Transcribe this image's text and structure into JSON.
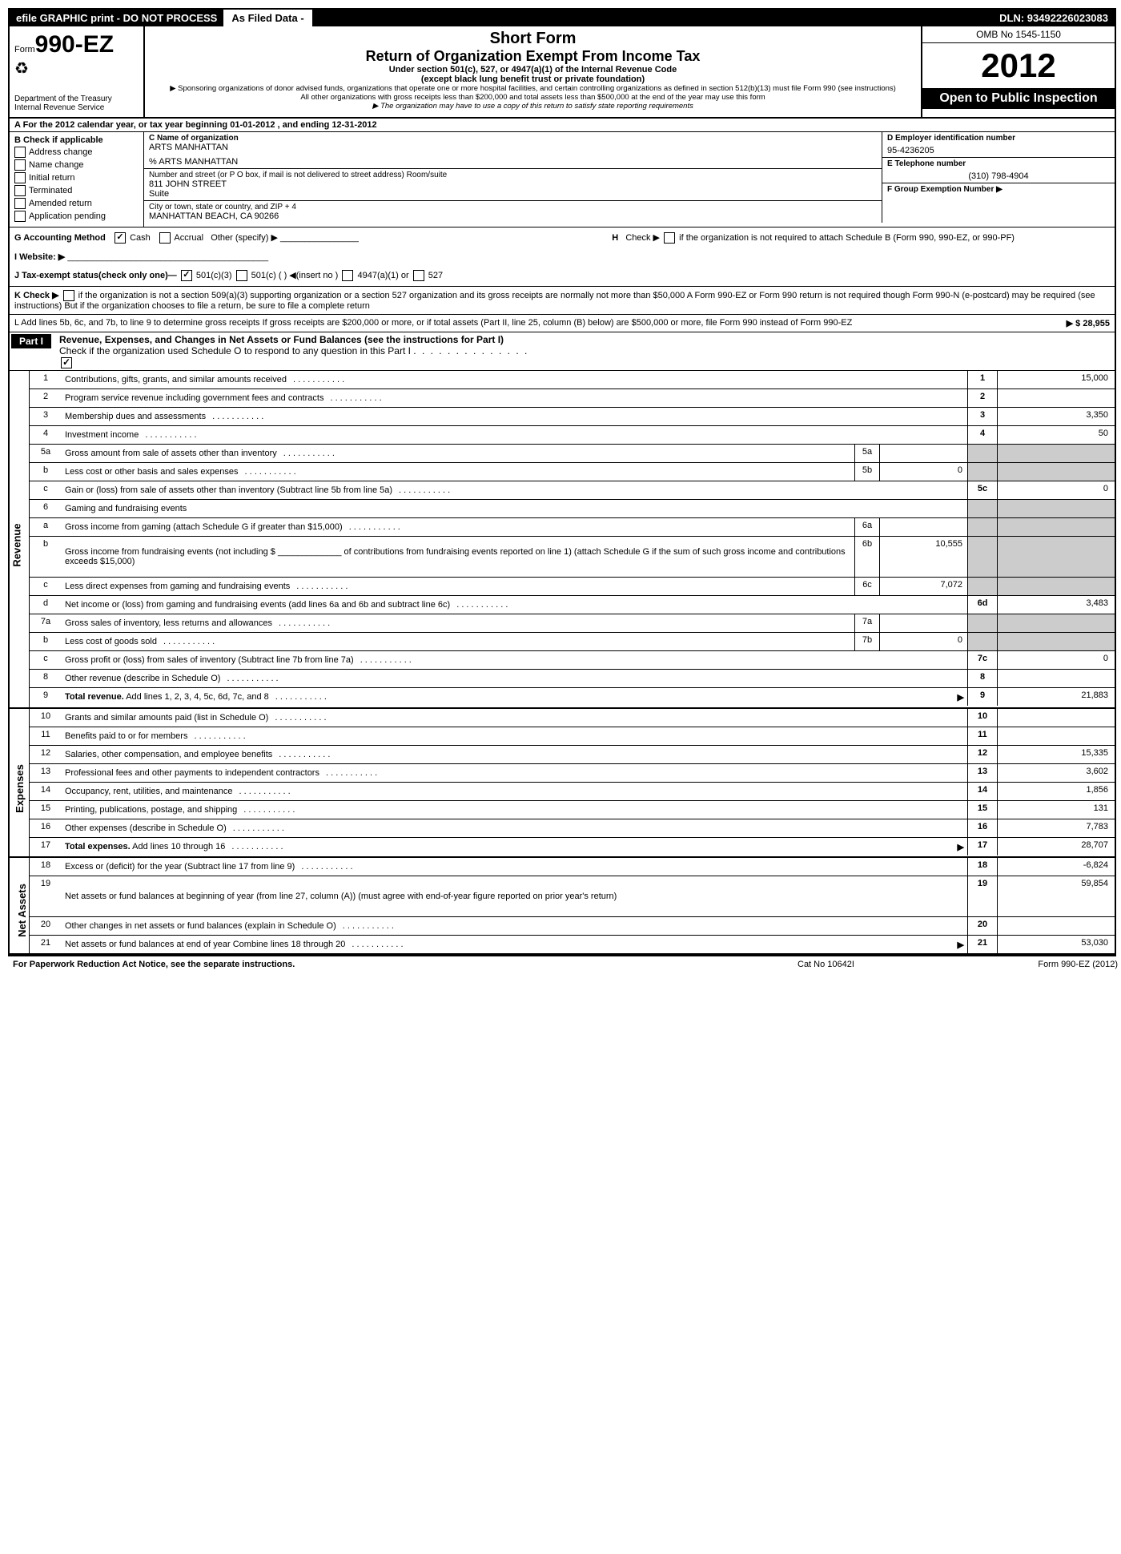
{
  "topbar": {
    "left": "efile GRAPHIC print - DO NOT PROCESS",
    "mid": "As Filed Data -",
    "right": "DLN: 93492226023083"
  },
  "header": {
    "form_prefix": "Form",
    "form_number": "990-EZ",
    "dept1": "Department of the Treasury",
    "dept2": "Internal Revenue Service",
    "short_form": "Short Form",
    "title": "Return of Organization Exempt From Income Tax",
    "sub1": "Under section 501(c), 527, or 4947(a)(1) of the Internal Revenue Code",
    "sub2": "(except black lung benefit trust or private foundation)",
    "note1": "▶ Sponsoring organizations of donor advised funds, organizations that operate one or more hospital facilities, and certain controlling organizations as defined in section 512(b)(13) must file Form 990 (see instructions)",
    "note2": "All other organizations with gross receipts less than $200,000 and total assets less than $500,000 at the end of the year may use this form",
    "note3": "▶ The organization may have to use a copy of this return to satisfy state reporting requirements",
    "omb": "OMB No 1545-1150",
    "year": "2012",
    "open": "Open to Public Inspection"
  },
  "rowA": {
    "text_pre": "A  For the 2012 calendar year, or tax year beginning ",
    "begin": "01-01-2012",
    "text_mid": " , and ending ",
    "end": "12-31-2012"
  },
  "colB": {
    "head": "B  Check if applicable",
    "items": [
      "Address change",
      "Name change",
      "Initial return",
      "Terminated",
      "Amended return",
      "Application pending"
    ]
  },
  "colC": {
    "name_label": "C Name of organization",
    "name": "ARTS MANHATTAN",
    "doing": "% ARTS MANHATTAN",
    "street_label": "Number and street (or P O box, if mail is not delivered to street address) Room/suite",
    "street": "811 JOHN STREET",
    "suite": "Suite",
    "city_label": "City or town, state or country, and ZIP + 4",
    "city": "MANHATTAN BEACH, CA  90266"
  },
  "colD": {
    "d_label": "D Employer identification number",
    "d_val": "95-4236205",
    "e_label": "E Telephone number",
    "e_val": "(310) 798-4904",
    "f_label": "F Group Exemption Number   ▶"
  },
  "rowGH": {
    "g": "G Accounting Method",
    "cash": "Cash",
    "accrual": "Accrual",
    "other": "Other (specify) ▶",
    "i": "I Website: ▶",
    "j": "J Tax-exempt status(check only one)—",
    "j501c3": "501(c)(3)",
    "j501c": "501(c) (   ) ◀(insert no )",
    "j4947": "4947(a)(1) or",
    "j527": "527",
    "h1": "Check ▶",
    "h2": "if the organization is not required to attach Schedule B (Form 990, 990-EZ, or 990-PF)"
  },
  "rowK": {
    "k": "K Check ▶",
    "ktext": "if the organization is not a section 509(a)(3) supporting organization or a section 527 organization and its gross receipts are normally not more than $50,000  A Form 990-EZ or Form 990 return is not required though Form 990-N (e-postcard) may be required (see instructions)  But if the organization chooses to file a return, be sure to file a complete return",
    "l": "L Add lines 5b, 6c, and 7b, to line 9 to determine gross receipts  If gross receipts are $200,000 or more, or if total assets (Part II, line 25, column (B) below) are $500,000 or more, file Form 990 instead of Form 990-EZ",
    "lval": "▶ $ 28,955"
  },
  "part1": {
    "label": "Part I",
    "title": "Revenue, Expenses, and Changes in Net Assets or Fund Balances (see the instructions for Part I)",
    "check": "Check if the organization used Schedule O to respond to any question in this Part I"
  },
  "sections": {
    "revenue": "Revenue",
    "expenses": "Expenses",
    "netassets": "Net Assets"
  },
  "lines": [
    {
      "sec": "revenue",
      "n": "1",
      "desc": "Contributions, gifts, grants, and similar amounts received",
      "ln": "1",
      "val": "15,000"
    },
    {
      "sec": "revenue",
      "n": "2",
      "desc": "Program service revenue including government fees and contracts",
      "ln": "2",
      "val": ""
    },
    {
      "sec": "revenue",
      "n": "3",
      "desc": "Membership dues and assessments",
      "ln": "3",
      "val": "3,350"
    },
    {
      "sec": "revenue",
      "n": "4",
      "desc": "Investment income",
      "ln": "4",
      "val": "50"
    },
    {
      "sec": "revenue",
      "n": "5a",
      "desc": "Gross amount from sale of assets other than inventory",
      "sub": "5a",
      "subval": "",
      "grey": true
    },
    {
      "sec": "revenue",
      "n": "b",
      "desc": "Less  cost or other basis and sales expenses",
      "sub": "5b",
      "subval": "0",
      "grey": true
    },
    {
      "sec": "revenue",
      "n": "c",
      "desc": "Gain or (loss) from sale of assets other than inventory (Subtract line 5b from line 5a)",
      "ln": "5c",
      "val": "0"
    },
    {
      "sec": "revenue",
      "n": "6",
      "desc": "Gaming and fundraising events",
      "grey": true,
      "noval": true
    },
    {
      "sec": "revenue",
      "n": "a",
      "desc": "Gross income from gaming (attach Schedule G if greater than $15,000)",
      "sub": "6a",
      "subval": "",
      "grey": true
    },
    {
      "sec": "revenue",
      "n": "b",
      "desc": "Gross income from fundraising events (not including $ _____________ of contributions from fundraising events reported on line 1) (attach Schedule G if the sum of such gross income and contributions exceeds $15,000)",
      "sub": "6b",
      "subval": "10,555",
      "grey": true,
      "tall": true
    },
    {
      "sec": "revenue",
      "n": "c",
      "desc": "Less  direct expenses from gaming and fundraising events",
      "sub": "6c",
      "subval": "7,072",
      "grey": true
    },
    {
      "sec": "revenue",
      "n": "d",
      "desc": "Net income or (loss) from gaming and fundraising events (add lines 6a and 6b and subtract line 6c)",
      "ln": "6d",
      "val": "3,483"
    },
    {
      "sec": "revenue",
      "n": "7a",
      "desc": "Gross sales of inventory, less returns and allowances",
      "sub": "7a",
      "subval": "",
      "grey": true
    },
    {
      "sec": "revenue",
      "n": "b",
      "desc": "Less  cost of goods sold",
      "sub": "7b",
      "subval": "0",
      "grey": true
    },
    {
      "sec": "revenue",
      "n": "c",
      "desc": "Gross profit or (loss) from sales of inventory (Subtract line 7b from line 7a)",
      "ln": "7c",
      "val": "0"
    },
    {
      "sec": "revenue",
      "n": "8",
      "desc": "Other revenue (describe in Schedule O)",
      "ln": "8",
      "val": ""
    },
    {
      "sec": "revenue",
      "n": "9",
      "desc": "Total revenue. Add lines 1, 2, 3, 4, 5c, 6d, 7c, and 8",
      "ln": "9",
      "val": "21,883",
      "bold": true,
      "arrow": true
    },
    {
      "sec": "expenses",
      "n": "10",
      "desc": "Grants and similar amounts paid (list in Schedule O)",
      "ln": "10",
      "val": ""
    },
    {
      "sec": "expenses",
      "n": "11",
      "desc": "Benefits paid to or for members",
      "ln": "11",
      "val": ""
    },
    {
      "sec": "expenses",
      "n": "12",
      "desc": "Salaries, other compensation, and employee benefits",
      "ln": "12",
      "val": "15,335"
    },
    {
      "sec": "expenses",
      "n": "13",
      "desc": "Professional fees and other payments to independent contractors",
      "ln": "13",
      "val": "3,602"
    },
    {
      "sec": "expenses",
      "n": "14",
      "desc": "Occupancy, rent, utilities, and maintenance",
      "ln": "14",
      "val": "1,856"
    },
    {
      "sec": "expenses",
      "n": "15",
      "desc": "Printing, publications, postage, and shipping",
      "ln": "15",
      "val": "131"
    },
    {
      "sec": "expenses",
      "n": "16",
      "desc": "Other expenses (describe in Schedule O)",
      "ln": "16",
      "val": "7,783"
    },
    {
      "sec": "expenses",
      "n": "17",
      "desc": "Total expenses. Add lines 10 through 16",
      "ln": "17",
      "val": "28,707",
      "bold": true,
      "arrow": true
    },
    {
      "sec": "netassets",
      "n": "18",
      "desc": "Excess or (deficit) for the year (Subtract line 17 from line 9)",
      "ln": "18",
      "val": "-6,824"
    },
    {
      "sec": "netassets",
      "n": "19",
      "desc": "Net assets or fund balances at beginning of year (from line 27, column (A)) (must agree with end-of-year figure reported on prior year's return)",
      "ln": "19",
      "val": "59,854",
      "tall": true
    },
    {
      "sec": "netassets",
      "n": "20",
      "desc": "Other changes in net assets or fund balances (explain in Schedule O)",
      "ln": "20",
      "val": ""
    },
    {
      "sec": "netassets",
      "n": "21",
      "desc": "Net assets or fund balances at end of year  Combine lines 18 through 20",
      "ln": "21",
      "val": "53,030",
      "arrow": true
    }
  ],
  "footer": {
    "l": "For Paperwork Reduction Act Notice, see the separate instructions.",
    "m": "Cat No  10642I",
    "r": "Form 990-EZ (2012)"
  }
}
